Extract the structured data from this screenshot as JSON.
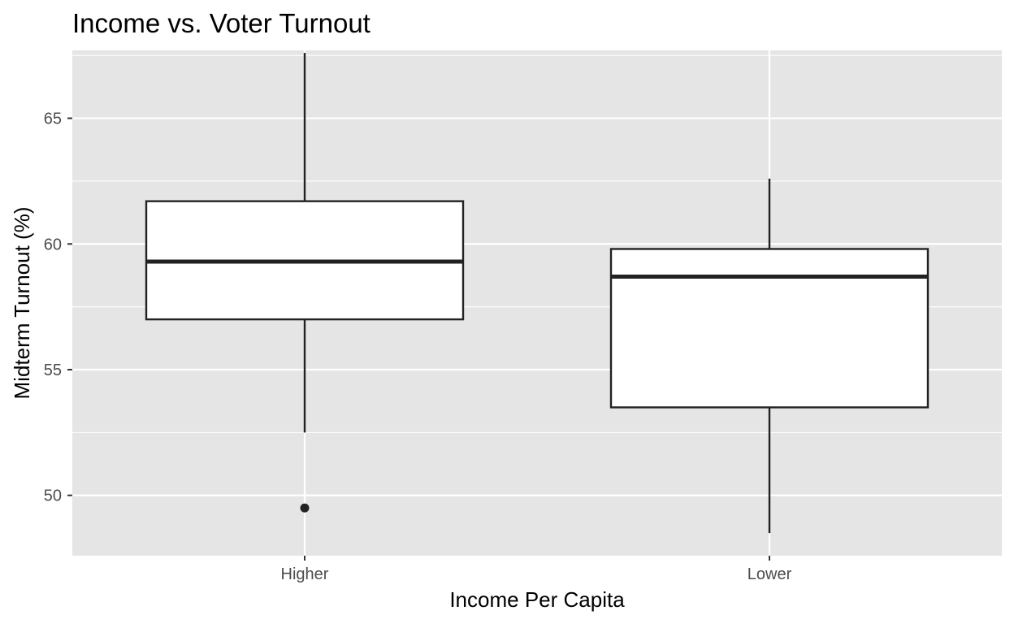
{
  "chart_data": {
    "type": "boxplot",
    "title": "Income  vs. Voter Turnout",
    "xlabel": "Income Per Capita",
    "ylabel": "Midterm Turnout (%)",
    "categories": [
      "Higher",
      "Lower"
    ],
    "ylim": [
      47.6,
      67.7
    ],
    "yticks": [
      50,
      55,
      60,
      65
    ],
    "grid": true,
    "legend": "none",
    "boxes": [
      {
        "category": "Higher",
        "whisker_low": 52.5,
        "q1": 57.0,
        "median": 59.3,
        "q3": 61.7,
        "whisker_high": 67.6,
        "outliers": [
          49.5
        ]
      },
      {
        "category": "Lower",
        "whisker_low": 48.5,
        "q1": 53.5,
        "median": 58.7,
        "q3": 59.8,
        "whisker_high": 62.6,
        "outliers": []
      }
    ]
  },
  "colors": {
    "panel_background": "#e5e5e5",
    "grid": "#ffffff",
    "box_fill": "#ffffff",
    "box_stroke": "#222222",
    "tick_text": "#4d4d4d"
  }
}
